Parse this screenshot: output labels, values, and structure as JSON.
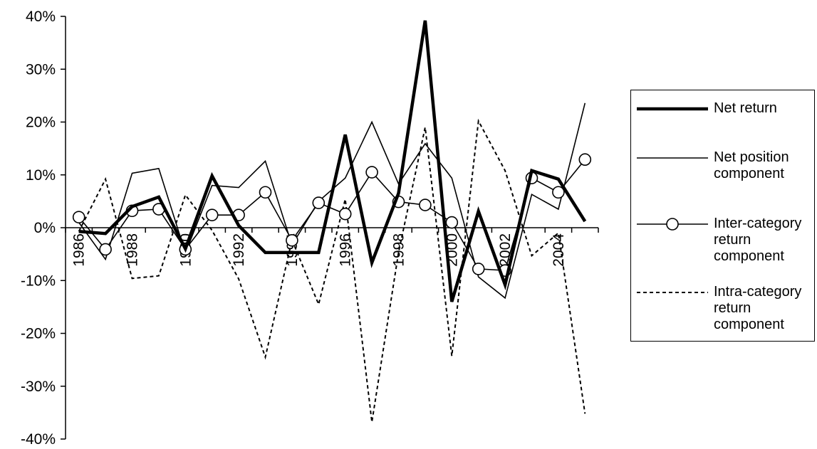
{
  "chart_data": {
    "type": "line",
    "title": "",
    "xlabel": "",
    "ylabel": "",
    "x": [
      1986,
      1987,
      1988,
      1989,
      1990,
      1991,
      1992,
      1993,
      1994,
      1995,
      1996,
      1997,
      1998,
      1999,
      2000,
      2001,
      2002,
      2003,
      2004,
      2005
    ],
    "x_tick_labels": [
      "1986",
      "1988",
      "1990",
      "1992",
      "1994",
      "1996",
      "1998",
      "2000",
      "2002",
      "2004"
    ],
    "x_tick_years": [
      1986,
      1988,
      1990,
      1992,
      1994,
      1996,
      1998,
      2000,
      2002,
      2004
    ],
    "ylim": [
      -0.4,
      0.4
    ],
    "y_ticks": [
      -0.4,
      -0.3,
      -0.2,
      -0.1,
      0,
      0.1,
      0.2,
      0.3,
      0.4
    ],
    "y_tick_labels": [
      "-40%",
      "-30%",
      "-20%",
      "-10%",
      "0%",
      "10%",
      "20%",
      "30%",
      "40%"
    ],
    "grid": false,
    "legend_position": "right",
    "series": [
      {
        "name": "Net return",
        "style": "thick",
        "values": [
          -0.007,
          -0.011,
          0.04,
          0.058,
          -0.04,
          0.098,
          0.004,
          -0.047,
          -0.047,
          -0.047,
          0.176,
          -0.066,
          0.065,
          0.392,
          -0.14,
          0.031,
          -0.108,
          0.108,
          0.092,
          0.012
        ]
      },
      {
        "name": "Net position component",
        "style": "thin",
        "values": [
          0.01,
          -0.06,
          0.103,
          0.112,
          -0.048,
          0.08,
          0.076,
          0.126,
          -0.033,
          0.05,
          0.094,
          0.2,
          0.083,
          0.159,
          0.094,
          -0.093,
          -0.133,
          0.063,
          0.035,
          0.236
        ]
      },
      {
        "name": "Inter-category return component",
        "style": "circles",
        "values": [
          0.02,
          -0.041,
          0.032,
          0.035,
          -0.041,
          0.024,
          0.024,
          0.067,
          -0.024,
          0.047,
          0.026,
          0.105,
          0.049,
          0.043,
          0.01,
          -0.078,
          -0.081,
          0.094,
          0.067,
          0.129
        ]
      },
      {
        "name": "Intra-category return component",
        "style": "dashed",
        "values": [
          -0.007,
          0.092,
          -0.096,
          -0.091,
          0.062,
          -0.005,
          -0.097,
          -0.245,
          -0.023,
          -0.145,
          0.054,
          -0.368,
          -0.047,
          0.19,
          -0.243,
          0.202,
          0.108,
          -0.053,
          -0.01,
          -0.352
        ]
      }
    ],
    "colors": {
      "line": "#000000",
      "background": "#ffffff"
    }
  }
}
